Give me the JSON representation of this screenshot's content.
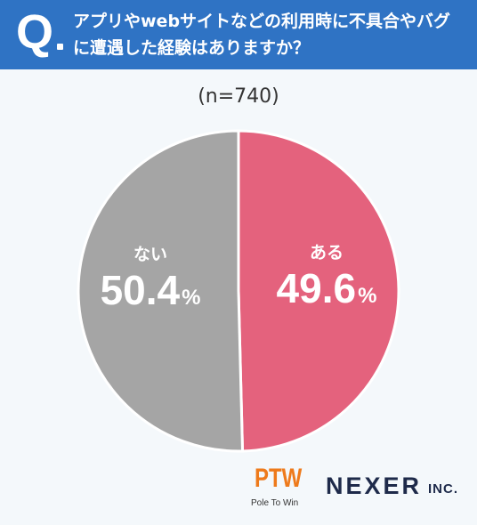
{
  "header": {
    "q_mark": "Q",
    "question": "アプリやwebサイトなどの利用時に不具合やバグに遭遇した経験はありますか？"
  },
  "subtitle": "(n=740)",
  "chart_data": {
    "type": "pie",
    "title": "アプリやwebサイトなどの利用時に不具合やバグに遭遇した経験はありますか？",
    "subtitle": "(n=740)",
    "unit": "%",
    "start_angle": "12 o'clock",
    "direction": "clockwise",
    "slices": [
      {
        "label": "ある",
        "value": 49.6,
        "display": "49.6",
        "color": "#e4627d"
      },
      {
        "label": "ない",
        "value": 50.4,
        "display": "50.4",
        "color": "#a5a5a5"
      }
    ]
  },
  "logos": {
    "ptw": "PTW",
    "ptw_sub": "Pole To Win",
    "nexer": "NEXER",
    "nexer_inc": "INC."
  }
}
